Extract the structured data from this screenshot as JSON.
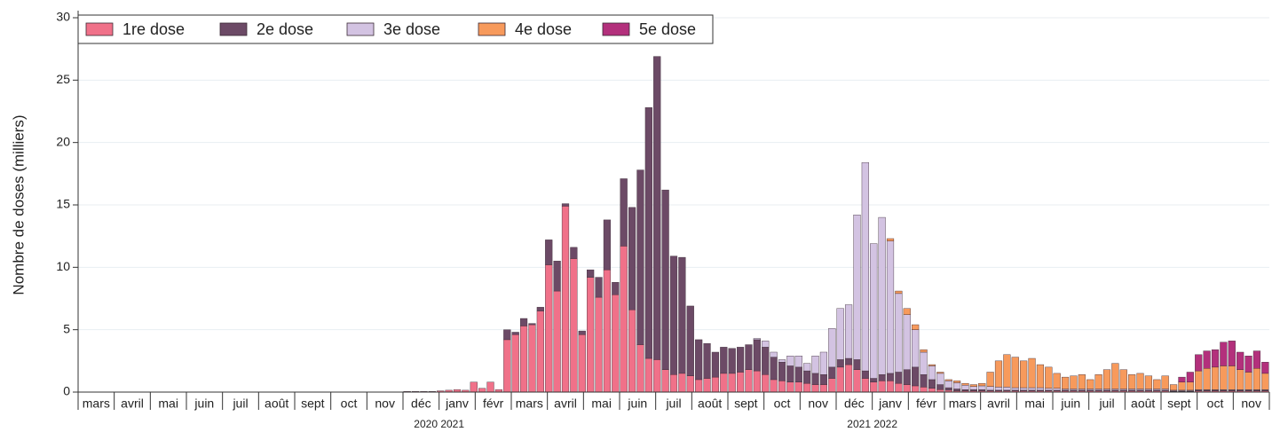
{
  "chart_data": {
    "type": "stacked_bar",
    "y_label": "Nombre de doses (milliers)",
    "months": [
      "mars",
      "avril",
      "mai",
      "juin",
      "juil",
      "août",
      "sept",
      "oct",
      "nov",
      "déc",
      "janv",
      "févr",
      "mars",
      "avril",
      "mai",
      "juin",
      "juil",
      "août",
      "sept",
      "oct",
      "nov",
      "déc",
      "janv",
      "févr",
      "mars",
      "avril",
      "mai",
      "juin",
      "juil",
      "août",
      "sept",
      "oct",
      "nov"
    ],
    "year_labels": [
      "2020 2021",
      "2021 2022"
    ],
    "ylim": [
      0,
      30
    ],
    "yticks": [
      0,
      5,
      10,
      15,
      20,
      25,
      30
    ],
    "grid": true,
    "legend": "top-left",
    "series": [
      {
        "name": "1re dose",
        "color": "#f07189",
        "values": [
          0,
          0,
          0,
          0,
          0,
          0,
          0,
          0,
          0,
          0,
          0,
          0,
          0,
          0,
          0,
          0,
          0,
          0,
          0,
          0,
          0,
          0,
          0,
          0,
          0,
          0,
          0,
          0,
          0,
          0,
          0,
          0,
          0,
          0,
          0,
          0,
          0,
          0,
          0,
          0.05,
          0.05,
          0.05,
          0.05,
          0.1,
          0.15,
          0.2,
          0.15,
          0.8,
          0.3,
          0.8,
          0.2,
          4.2,
          4.6,
          5.3,
          5.4,
          6.5,
          10.2,
          8.1,
          14.9,
          10.7,
          4.6,
          9.2,
          7.6,
          9.8,
          7.8,
          11.7,
          6.6,
          3.8,
          2.7,
          2.6,
          1.8,
          1.4,
          1.5,
          1.3,
          1.0,
          1.1,
          1.2,
          1.5,
          1.5,
          1.6,
          1.8,
          1.7,
          1.4,
          1.0,
          0.9,
          0.8,
          0.8,
          0.7,
          0.6,
          0.6,
          1.1,
          2.0,
          2.2,
          1.8,
          1.1,
          0.8,
          0.9,
          0.9,
          0.7,
          0.6,
          0.5,
          0.4,
          0.3,
          0.2,
          0.15,
          0.1,
          0.1,
          0.1,
          0.1,
          0.1,
          0.1,
          0.1,
          0.1,
          0.1,
          0.1,
          0.1,
          0.1,
          0.1,
          0.1,
          0.1,
          0.1,
          0.1,
          0.1,
          0.1,
          0.1,
          0.1,
          0.1,
          0.1,
          0.1,
          0.1,
          0.1,
          0.05,
          0.05,
          0.05,
          0.1,
          0.1,
          0.1,
          0.1,
          0.1,
          0.1,
          0.1,
          0.1,
          0.1
        ]
      },
      {
        "name": "2e dose",
        "color": "#6c4a66",
        "values": [
          0,
          0,
          0,
          0,
          0,
          0,
          0,
          0,
          0,
          0,
          0,
          0,
          0,
          0,
          0,
          0,
          0,
          0,
          0,
          0,
          0,
          0,
          0,
          0,
          0,
          0,
          0,
          0,
          0,
          0,
          0,
          0,
          0,
          0,
          0,
          0,
          0,
          0,
          0,
          0,
          0,
          0,
          0,
          0,
          0,
          0,
          0,
          0,
          0,
          0,
          0,
          0.8,
          0.2,
          0.6,
          0.1,
          0.3,
          2.0,
          2.4,
          0.2,
          0.9,
          0.3,
          0.6,
          1.6,
          4.0,
          1.0,
          5.4,
          8.2,
          14.0,
          20.1,
          24.3,
          14.4,
          9.5,
          9.3,
          5.6,
          3.2,
          2.8,
          2.0,
          2.1,
          2.0,
          2.0,
          2.0,
          2.5,
          2.2,
          1.8,
          1.5,
          1.3,
          1.2,
          1.0,
          0.9,
          0.8,
          0.9,
          0.6,
          0.5,
          0.8,
          0.6,
          0.3,
          0.5,
          0.6,
          0.9,
          1.2,
          1.5,
          1.0,
          0.7,
          0.4,
          0.2,
          0.15,
          0.1,
          0.1,
          0.1,
          0.05,
          0.05,
          0.05,
          0.05,
          0.05,
          0.05,
          0.05,
          0.05,
          0.05,
          0.05,
          0.05,
          0.05,
          0.05,
          0.05,
          0.05,
          0.05,
          0.05,
          0.05,
          0.05,
          0.05,
          0.05,
          0.05,
          0.05,
          0.05,
          0.05,
          0.05,
          0.05,
          0.05,
          0.05,
          0.05,
          0.05,
          0.05,
          0.05,
          0.05
        ]
      },
      {
        "name": "3e dose",
        "color": "#d3c3e2",
        "values": [
          0,
          0,
          0,
          0,
          0,
          0,
          0,
          0,
          0,
          0,
          0,
          0,
          0,
          0,
          0,
          0,
          0,
          0,
          0,
          0,
          0,
          0,
          0,
          0,
          0,
          0,
          0,
          0,
          0,
          0,
          0,
          0,
          0,
          0,
          0,
          0,
          0,
          0,
          0,
          0,
          0,
          0,
          0,
          0,
          0,
          0,
          0,
          0,
          0,
          0,
          0,
          0,
          0,
          0,
          0,
          0,
          0,
          0,
          0,
          0,
          0,
          0,
          0,
          0,
          0,
          0,
          0,
          0,
          0,
          0,
          0,
          0,
          0,
          0,
          0,
          0,
          0,
          0,
          0,
          0,
          0,
          0.1,
          0.5,
          0.4,
          0.2,
          0.8,
          0.9,
          0.6,
          1.4,
          1.8,
          3.1,
          4.1,
          4.3,
          11.6,
          16.7,
          10.8,
          12.6,
          10.6,
          6.3,
          4.4,
          3.0,
          1.8,
          1.1,
          0.9,
          0.55,
          0.5,
          0.35,
          0.25,
          0.3,
          0.3,
          0.25,
          0.25,
          0.2,
          0.2,
          0.2,
          0.2,
          0.15,
          0.15,
          0.1,
          0.1,
          0.1,
          0.1,
          0.1,
          0.1,
          0.1,
          0.1,
          0.1,
          0.1,
          0.1,
          0.1,
          0.1,
          0.05,
          0.05,
          0.05,
          0.05,
          0.05,
          0.05,
          0.05,
          0.05,
          0.05,
          0.05,
          0.05,
          0.05
        ]
      },
      {
        "name": "4e dose",
        "color": "#f79a5c",
        "values": [
          0,
          0,
          0,
          0,
          0,
          0,
          0,
          0,
          0,
          0,
          0,
          0,
          0,
          0,
          0,
          0,
          0,
          0,
          0,
          0,
          0,
          0,
          0,
          0,
          0,
          0,
          0,
          0,
          0,
          0,
          0,
          0,
          0,
          0,
          0,
          0,
          0,
          0,
          0,
          0,
          0,
          0,
          0,
          0,
          0,
          0,
          0,
          0,
          0,
          0,
          0,
          0,
          0,
          0,
          0,
          0,
          0,
          0,
          0,
          0,
          0,
          0,
          0,
          0,
          0,
          0,
          0,
          0,
          0,
          0,
          0,
          0,
          0,
          0,
          0,
          0,
          0,
          0,
          0,
          0,
          0,
          0,
          0,
          0,
          0,
          0,
          0,
          0,
          0,
          0,
          0,
          0,
          0,
          0,
          0,
          0,
          0,
          0.2,
          0.2,
          0.5,
          0.4,
          0.2,
          0.1,
          0.1,
          0.1,
          0.15,
          0.15,
          0.15,
          0.2,
          1.15,
          2.1,
          2.6,
          2.45,
          2.15,
          2.35,
          1.85,
          1.7,
          1.2,
          0.95,
          1.05,
          1.15,
          0.75,
          1.15,
          1.55,
          2.05,
          1.55,
          1.15,
          1.25,
          1.05,
          0.75,
          1.05,
          0.45,
          0.65,
          0.65,
          1.5,
          1.7,
          1.8,
          1.9,
          1.9,
          1.6,
          1.4,
          1.7,
          1.3
        ]
      },
      {
        "name": "5e dose",
        "color": "#b3307c",
        "values": [
          0,
          0,
          0,
          0,
          0,
          0,
          0,
          0,
          0,
          0,
          0,
          0,
          0,
          0,
          0,
          0,
          0,
          0,
          0,
          0,
          0,
          0,
          0,
          0,
          0,
          0,
          0,
          0,
          0,
          0,
          0,
          0,
          0,
          0,
          0,
          0,
          0,
          0,
          0,
          0,
          0,
          0,
          0,
          0,
          0,
          0,
          0,
          0,
          0,
          0,
          0,
          0,
          0,
          0,
          0,
          0,
          0,
          0,
          0,
          0,
          0,
          0,
          0,
          0,
          0,
          0,
          0,
          0,
          0,
          0,
          0,
          0,
          0,
          0,
          0,
          0,
          0,
          0,
          0,
          0,
          0,
          0,
          0,
          0,
          0,
          0,
          0,
          0,
          0,
          0,
          0,
          0,
          0,
          0,
          0,
          0,
          0,
          0,
          0,
          0,
          0,
          0,
          0,
          0,
          0,
          0,
          0,
          0,
          0,
          0,
          0,
          0,
          0,
          0,
          0,
          0,
          0,
          0,
          0,
          0,
          0,
          0,
          0,
          0,
          0,
          0,
          0,
          0,
          0,
          0,
          0,
          0,
          0.4,
          0.8,
          1.3,
          1.4,
          1.4,
          1.9,
          2.0,
          1.4,
          1.3,
          1.4,
          0.9
        ]
      }
    ]
  }
}
